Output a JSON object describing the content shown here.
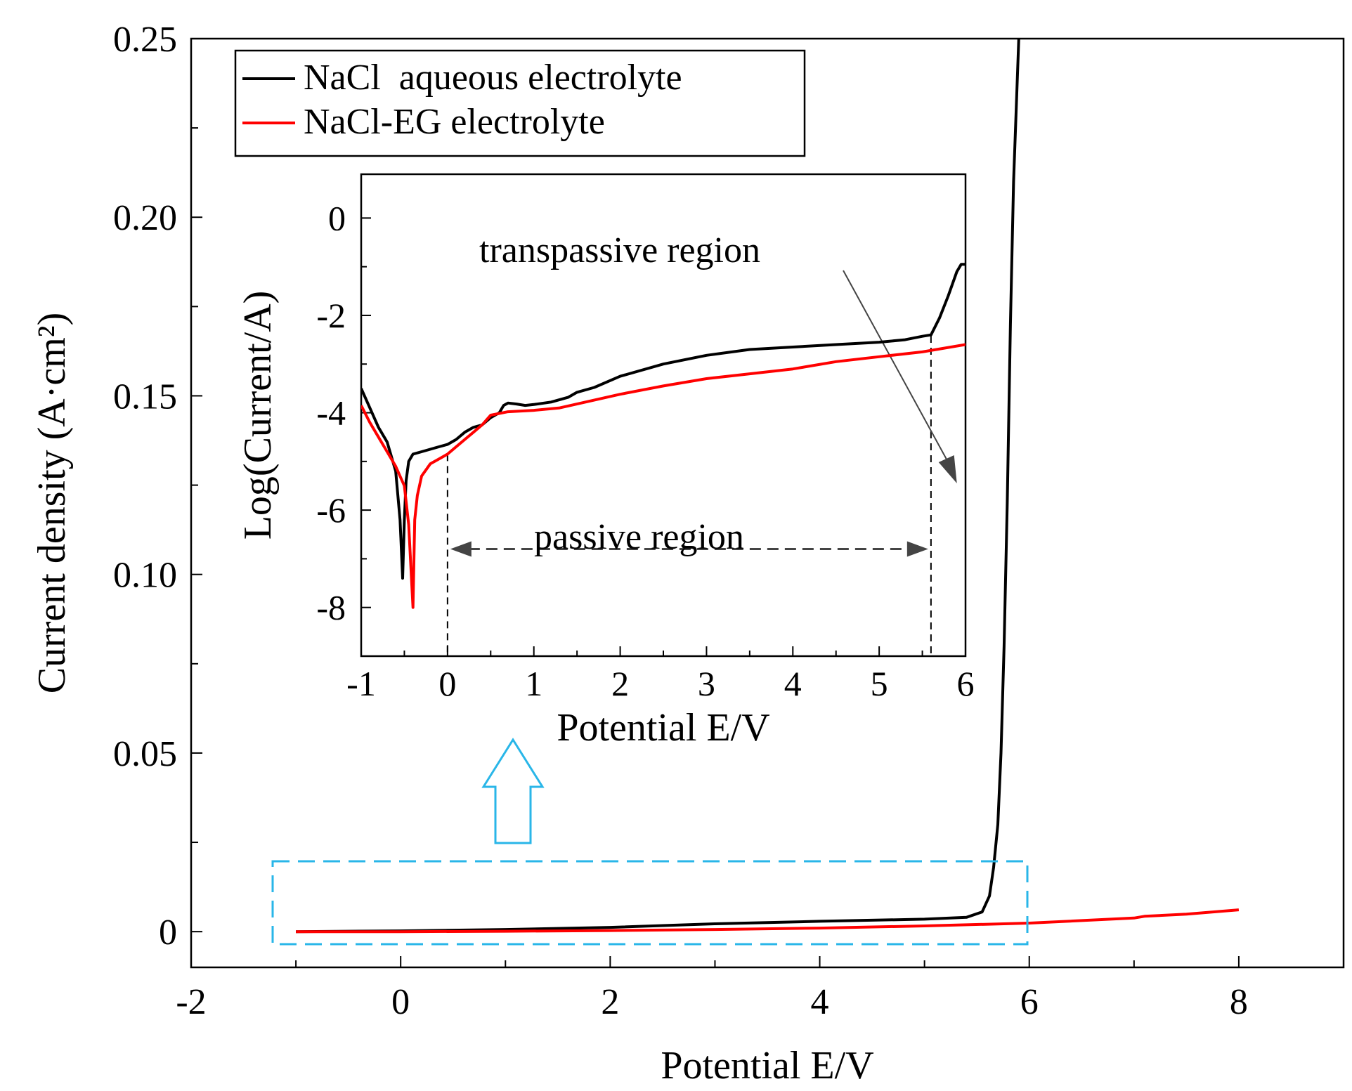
{
  "chart_data": [
    {
      "id": "main",
      "type": "line",
      "xlabel": "Potential E/V",
      "ylabel": "Current density (A·cm²)",
      "xlim": [
        -2,
        9
      ],
      "ylim": [
        -0.01,
        0.25
      ],
      "xticks": [
        -2,
        0,
        2,
        4,
        6,
        8
      ],
      "xtick_labels": [
        "-2",
        "0",
        "2",
        "4",
        "6",
        "8"
      ],
      "yticks": [
        0,
        0.05,
        0.1,
        0.15,
        0.2,
        0.25
      ],
      "ytick_labels": [
        "0",
        "0.05",
        "0.10",
        "0.15",
        "0.20",
        "0.25"
      ],
      "grid": false,
      "legend_position": "top-left",
      "series": [
        {
          "name": "NaCl  aqueous electrolyte",
          "color": "#000000",
          "x": [
            -1.0,
            0.0,
            1.0,
            2.0,
            3.0,
            4.0,
            5.0,
            5.4,
            5.55,
            5.62,
            5.66,
            5.7,
            5.73,
            5.76,
            5.79,
            5.82,
            5.85,
            5.9
          ],
          "y": [
            0.0,
            0.0002,
            0.0006,
            0.0012,
            0.0022,
            0.0029,
            0.0035,
            0.004,
            0.0055,
            0.01,
            0.018,
            0.03,
            0.05,
            0.08,
            0.12,
            0.17,
            0.21,
            0.25
          ]
        },
        {
          "name": "NaCl-EG electrolyte",
          "color": "#ff0000",
          "x": [
            -1.0,
            0.0,
            1.0,
            2.0,
            3.0,
            4.0,
            5.0,
            6.0,
            7.0,
            7.1,
            7.5,
            8.0
          ],
          "y": [
            0.0,
            0.0,
            0.0001,
            0.0003,
            0.0006,
            0.001,
            0.0016,
            0.0024,
            0.0038,
            0.0043,
            0.0049,
            0.0061
          ]
        }
      ]
    },
    {
      "id": "inset",
      "type": "line",
      "xlabel": "Potential E/V",
      "ylabel": "Log(Current/A)",
      "xlim": [
        -1,
        6
      ],
      "ylim": [
        -9,
        0.9
      ],
      "xticks": [
        -1,
        0,
        1,
        2,
        3,
        4,
        5,
        6
      ],
      "xtick_labels": [
        "-1",
        "0",
        "1",
        "2",
        "3",
        "4",
        "5",
        "6"
      ],
      "yticks": [
        -8,
        -6,
        -4,
        -2,
        0
      ],
      "ytick_labels": [
        "-8",
        "-6",
        "-4",
        "-2",
        "0"
      ],
      "series": [
        {
          "name": "NaCl  aqueous electrolyte",
          "color": "#000000",
          "x": [
            -1.0,
            -0.9,
            -0.8,
            -0.7,
            -0.6,
            -0.55,
            -0.52,
            -0.5,
            -0.48,
            -0.45,
            -0.4,
            -0.3,
            -0.2,
            -0.1,
            0.0,
            0.1,
            0.2,
            0.3,
            0.4,
            0.5,
            0.6,
            0.65,
            0.7,
            0.8,
            0.9,
            1.0,
            1.2,
            1.4,
            1.5,
            1.7,
            2.0,
            2.5,
            3.0,
            3.5,
            4.0,
            4.5,
            5.0,
            5.3,
            5.5,
            5.6,
            5.7,
            5.8,
            5.9,
            5.95,
            6.0
          ],
          "y": [
            -3.5,
            -3.9,
            -4.3,
            -4.6,
            -5.2,
            -6.2,
            -7.4,
            -6.2,
            -5.4,
            -5.0,
            -4.85,
            -4.8,
            -4.75,
            -4.7,
            -4.65,
            -4.55,
            -4.4,
            -4.3,
            -4.25,
            -4.1,
            -4.0,
            -3.85,
            -3.8,
            -3.82,
            -3.85,
            -3.83,
            -3.78,
            -3.68,
            -3.58,
            -3.48,
            -3.25,
            -3.0,
            -2.82,
            -2.7,
            -2.65,
            -2.6,
            -2.55,
            -2.5,
            -2.43,
            -2.4,
            -2.05,
            -1.6,
            -1.1,
            -0.95,
            -0.95
          ]
        },
        {
          "name": "NaCl-EG electrolyte",
          "color": "#ff0000",
          "x": [
            -1.0,
            -0.9,
            -0.8,
            -0.7,
            -0.6,
            -0.5,
            -0.45,
            -0.4,
            -0.38,
            -0.35,
            -0.3,
            -0.2,
            -0.1,
            0.0,
            0.1,
            0.2,
            0.3,
            0.4,
            0.5,
            0.7,
            1.0,
            1.3,
            1.5,
            2.0,
            2.5,
            3.0,
            3.5,
            4.0,
            4.5,
            5.0,
            5.5,
            6.0
          ],
          "y": [
            -3.85,
            -4.2,
            -4.5,
            -4.8,
            -5.1,
            -5.5,
            -6.3,
            -8.0,
            -6.2,
            -5.7,
            -5.3,
            -5.05,
            -4.95,
            -4.85,
            -4.7,
            -4.55,
            -4.4,
            -4.25,
            -4.05,
            -3.98,
            -3.95,
            -3.9,
            -3.82,
            -3.62,
            -3.45,
            -3.3,
            -3.2,
            -3.1,
            -2.95,
            -2.85,
            -2.75,
            -2.6
          ]
        }
      ],
      "annotations": {
        "transpassive_label": "transpassive region",
        "passive_label": "passive region",
        "passive_start_x": 0.0,
        "passive_end_x": 5.6
      }
    }
  ],
  "colors": {
    "zoom_box": "#29b6e8",
    "zoom_arrow": "#29b6e8",
    "annotation_line": "#444444"
  }
}
